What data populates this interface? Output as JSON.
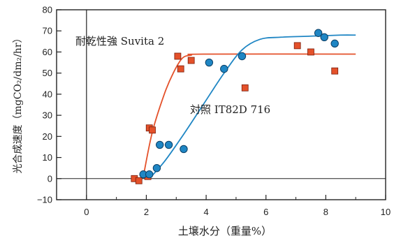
{
  "chart_data": {
    "type": "scatter",
    "title": "",
    "xlabel": "土壌水分（重量%）",
    "ylabel": "光合成速度（mgCO₂/dm₂/hr）",
    "xlim": [
      -1,
      10
    ],
    "ylim": [
      -10,
      80
    ],
    "x_ticks": [
      0,
      2,
      4,
      6,
      8,
      10
    ],
    "y_ticks": [
      -10,
      0,
      10,
      20,
      30,
      40,
      50,
      60,
      70,
      80
    ],
    "x_tick_labels": [
      "0",
      "2",
      "4",
      "6",
      "8",
      "10"
    ],
    "y_tick_labels": [
      "−10",
      "0",
      "10",
      "20",
      "30",
      "40",
      "50",
      "60",
      "70",
      "80"
    ],
    "grid": false,
    "series": [
      {
        "name": "耐乾性強 Suvita 2",
        "color": "#e4512a",
        "marker": "square",
        "x": [
          1.6,
          1.75,
          2.05,
          2.1,
          2.2,
          3.05,
          3.15,
          3.5,
          5.3,
          7.05,
          7.5,
          8.3
        ],
        "y": [
          0,
          -1,
          1,
          24,
          23,
          58,
          52,
          56,
          43,
          63,
          60,
          51
        ],
        "fit_x": [
          1.9,
          2.2,
          2.6,
          2.9,
          3.2,
          3.5,
          3.9,
          9
        ],
        "fit_y": [
          1,
          22,
          40,
          50,
          57,
          58.5,
          59,
          59
        ]
      },
      {
        "name": "対照 IT82D 716",
        "color": "#1f86c4",
        "marker": "circle",
        "x": [
          1.9,
          2.1,
          2.35,
          2.45,
          2.75,
          3.25,
          4.1,
          4.6,
          5.2,
          7.75,
          7.95,
          8.3
        ],
        "y": [
          2,
          2,
          5,
          16,
          16,
          14,
          55,
          52,
          58,
          69,
          67,
          64
        ],
        "fit_x": [
          2.1,
          2.6,
          3.2,
          3.9,
          4.6,
          5.2,
          5.8,
          6.5,
          7.5,
          8.5,
          9
        ],
        "fit_y": [
          0,
          8,
          20,
          35,
          50,
          61,
          66,
          67,
          67.5,
          68,
          68
        ]
      }
    ],
    "zero_line": 0,
    "vertical_line_x": 0,
    "annotations": [
      {
        "text": "耐乾性強 Suvita 2",
        "series": 0
      },
      {
        "text": "対照 IT82D 716",
        "series": 1
      }
    ]
  }
}
